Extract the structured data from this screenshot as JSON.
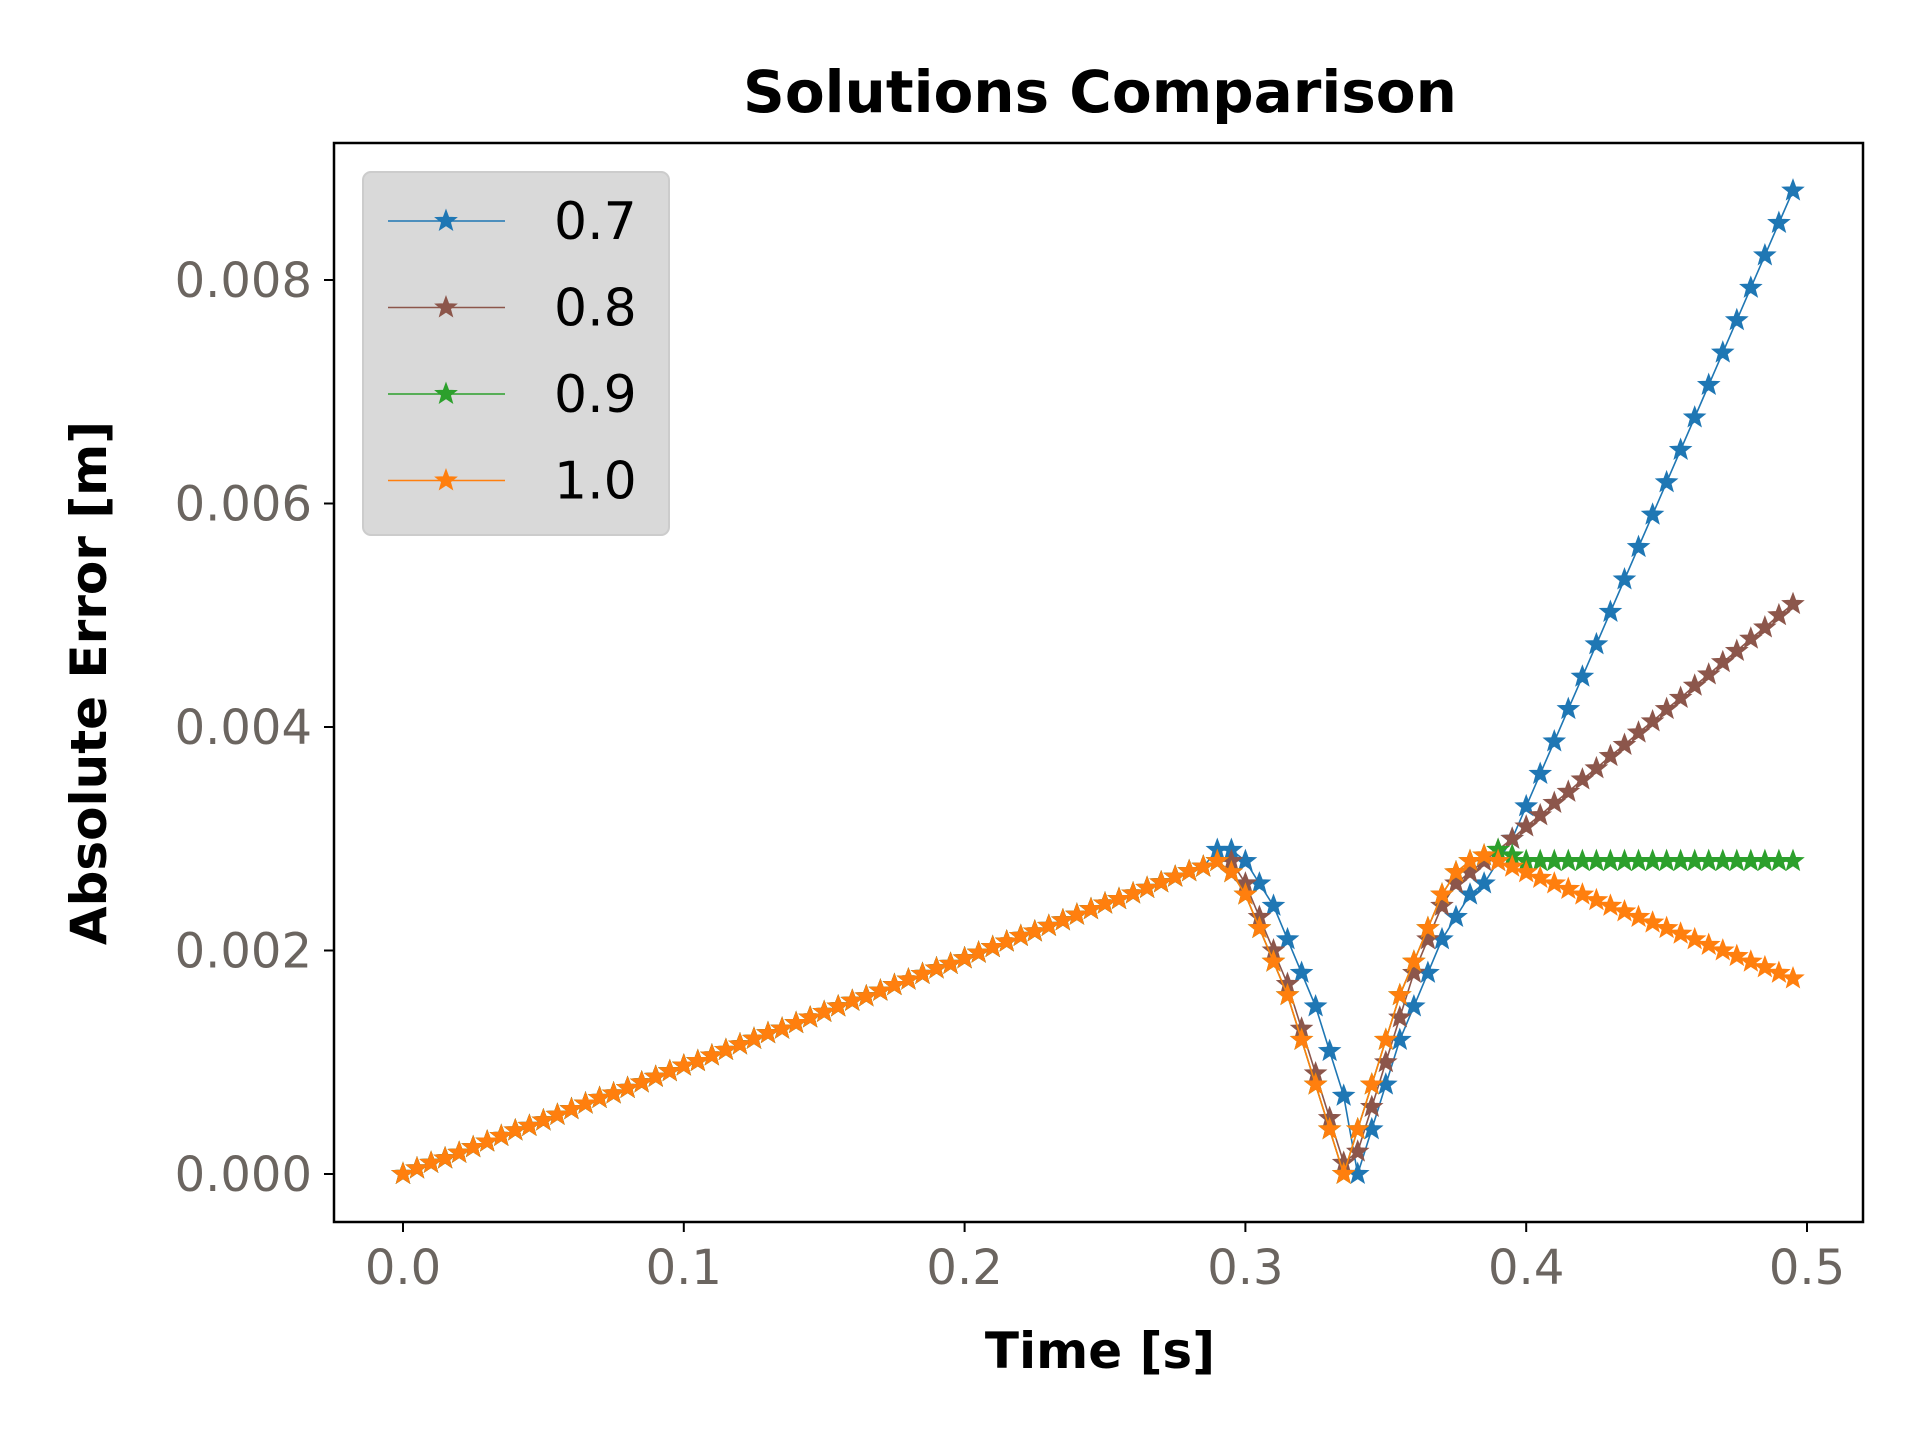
{
  "chart_data": {
    "type": "line",
    "title": "Solutions Comparison",
    "xlabel": "Time [s]",
    "ylabel": "Absolute Error [m]",
    "xlim": [
      -0.025,
      0.52
    ],
    "ylim": [
      -0.00045,
      0.0092
    ],
    "xticks": [
      "0.0",
      "0.1",
      "0.2",
      "0.3",
      "0.4",
      "0.5"
    ],
    "xtick_values": [
      0,
      0.1,
      0.2,
      0.3,
      0.4,
      0.5
    ],
    "yticks": [
      "0.000",
      "0.002",
      "0.004",
      "0.006",
      "0.008"
    ],
    "ytick_values": [
      0,
      0.002,
      0.004,
      0.006,
      0.008
    ],
    "grid": false,
    "legend_position": "top-left",
    "marker": "star",
    "tick_label_color": "#6b6560",
    "x": [
      0,
      0.005,
      0.01,
      0.015,
      0.02,
      0.025,
      0.03,
      0.035,
      0.04,
      0.045,
      0.05,
      0.055,
      0.06,
      0.065,
      0.07,
      0.075,
      0.08,
      0.085,
      0.09,
      0.095,
      0.1,
      0.105,
      0.11,
      0.115,
      0.12,
      0.125,
      0.13,
      0.135,
      0.14,
      0.145,
      0.15,
      0.155,
      0.16,
      0.165,
      0.17,
      0.175,
      0.18,
      0.185,
      0.19,
      0.195,
      0.2,
      0.205,
      0.21,
      0.215,
      0.22,
      0.225,
      0.23,
      0.235,
      0.24,
      0.245,
      0.25,
      0.255,
      0.26,
      0.265,
      0.27,
      0.275,
      0.28,
      0.285,
      0.29,
      0.295,
      0.3,
      0.305,
      0.31,
      0.315,
      0.32,
      0.325,
      0.33,
      0.335,
      0.34,
      0.345,
      0.35,
      0.355,
      0.36,
      0.365,
      0.37,
      0.375,
      0.38,
      0.385,
      0.39,
      0.395,
      0.4,
      0.405,
      0.41,
      0.415,
      0.42,
      0.425,
      0.43,
      0.435,
      0.44,
      0.445,
      0.45,
      0.455,
      0.46,
      0.465,
      0.47,
      0.475,
      0.48,
      0.485,
      0.49,
      0.495
    ],
    "series": [
      {
        "name": "0.7",
        "color": "#1f77b4",
        "y": [
          0,
          5e-05,
          0.0001,
          0.00014,
          0.00019,
          0.00024,
          0.00029,
          0.00034,
          0.00039,
          0.00043,
          0.00048,
          0.00053,
          0.00058,
          0.00063,
          0.00068,
          0.00072,
          0.00077,
          0.00082,
          0.00087,
          0.00092,
          0.00097,
          0.00101,
          0.00106,
          0.00111,
          0.00116,
          0.00121,
          0.00126,
          0.0013,
          0.00135,
          0.0014,
          0.00145,
          0.0015,
          0.00155,
          0.00159,
          0.00164,
          0.00169,
          0.00174,
          0.00179,
          0.00184,
          0.00188,
          0.00193,
          0.00198,
          0.00203,
          0.00208,
          0.00213,
          0.00217,
          0.00222,
          0.00227,
          0.00232,
          0.00237,
          0.00242,
          0.00246,
          0.00251,
          0.00256,
          0.00261,
          0.00266,
          0.00271,
          0.00275,
          0.0029,
          0.0029,
          0.0028,
          0.0026,
          0.0024,
          0.0021,
          0.0018,
          0.0015,
          0.0011,
          0.0007,
          0.0,
          0.0004,
          0.0008,
          0.0012,
          0.0015,
          0.0018,
          0.0021,
          0.0023,
          0.0025,
          0.0026,
          0.0028,
          0.003,
          0.00329,
          0.00358,
          0.00387,
          0.00416,
          0.00445,
          0.00474,
          0.00503,
          0.00532,
          0.00561,
          0.0059,
          0.00619,
          0.00648,
          0.00677,
          0.00706,
          0.00735,
          0.00764,
          0.00793,
          0.00822,
          0.00851,
          0.0088
        ]
      },
      {
        "name": "0.8",
        "color": "#8c564b",
        "y": [
          0,
          5e-05,
          0.0001,
          0.00014,
          0.00019,
          0.00024,
          0.00029,
          0.00034,
          0.00039,
          0.00043,
          0.00048,
          0.00053,
          0.00058,
          0.00063,
          0.00068,
          0.00072,
          0.00077,
          0.00082,
          0.00087,
          0.00092,
          0.00097,
          0.00101,
          0.00106,
          0.00111,
          0.00116,
          0.00121,
          0.00126,
          0.0013,
          0.00135,
          0.0014,
          0.00145,
          0.0015,
          0.00155,
          0.00159,
          0.00164,
          0.00169,
          0.00174,
          0.00179,
          0.00184,
          0.00188,
          0.00193,
          0.00198,
          0.00203,
          0.00208,
          0.00213,
          0.00217,
          0.00222,
          0.00227,
          0.00232,
          0.00237,
          0.00242,
          0.00246,
          0.00251,
          0.00256,
          0.00261,
          0.00266,
          0.00271,
          0.00275,
          0.0028,
          0.0028,
          0.0026,
          0.0023,
          0.002,
          0.0017,
          0.0013,
          0.0009,
          0.0005,
          0.0001,
          0.0002,
          0.0006,
          0.001,
          0.0014,
          0.0018,
          0.0021,
          0.0024,
          0.0026,
          0.0027,
          0.0028,
          0.0029,
          0.003,
          0.00311,
          0.00321,
          0.00332,
          0.00342,
          0.00353,
          0.00363,
          0.00374,
          0.00384,
          0.00395,
          0.00405,
          0.00416,
          0.00426,
          0.00437,
          0.00447,
          0.00458,
          0.00468,
          0.00479,
          0.00489,
          0.005,
          0.0051
        ]
      },
      {
        "name": "0.9",
        "color": "#2ca02c",
        "y": [
          0,
          5e-05,
          0.0001,
          0.00014,
          0.00019,
          0.00024,
          0.00029,
          0.00034,
          0.00039,
          0.00043,
          0.00048,
          0.00053,
          0.00058,
          0.00063,
          0.00068,
          0.00072,
          0.00077,
          0.00082,
          0.00087,
          0.00092,
          0.00097,
          0.00101,
          0.00106,
          0.00111,
          0.00116,
          0.00121,
          0.00126,
          0.0013,
          0.00135,
          0.0014,
          0.00145,
          0.0015,
          0.00155,
          0.00159,
          0.00164,
          0.00169,
          0.00174,
          0.00179,
          0.00184,
          0.00188,
          0.00193,
          0.00198,
          0.00203,
          0.00208,
          0.00213,
          0.00217,
          0.00222,
          0.00227,
          0.00232,
          0.00237,
          0.00242,
          0.00246,
          0.00251,
          0.00256,
          0.00261,
          0.00266,
          0.00271,
          0.00275,
          0.0028,
          0.0027,
          0.0025,
          0.0022,
          0.0019,
          0.0016,
          0.0012,
          0.0008,
          0.0004,
          0.0,
          0.0004,
          0.0008,
          0.0012,
          0.0016,
          0.0019,
          0.0022,
          0.0025,
          0.0027,
          0.0028,
          0.00285,
          0.0029,
          0.00285,
          0.0028,
          0.0028,
          0.0028,
          0.0028,
          0.0028,
          0.0028,
          0.0028,
          0.0028,
          0.0028,
          0.0028,
          0.0028,
          0.0028,
          0.0028,
          0.0028,
          0.0028,
          0.0028,
          0.0028,
          0.0028,
          0.0028,
          0.0028
        ]
      },
      {
        "name": "1.0",
        "color": "#ff7f0e",
        "y": [
          0,
          5e-05,
          0.0001,
          0.00014,
          0.00019,
          0.00024,
          0.00029,
          0.00034,
          0.00039,
          0.00043,
          0.00048,
          0.00053,
          0.00058,
          0.00063,
          0.00068,
          0.00072,
          0.00077,
          0.00082,
          0.00087,
          0.00092,
          0.00097,
          0.00101,
          0.00106,
          0.00111,
          0.00116,
          0.00121,
          0.00126,
          0.0013,
          0.00135,
          0.0014,
          0.00145,
          0.0015,
          0.00155,
          0.00159,
          0.00164,
          0.00169,
          0.00174,
          0.00179,
          0.00184,
          0.00188,
          0.00193,
          0.00198,
          0.00203,
          0.00208,
          0.00213,
          0.00217,
          0.00222,
          0.00227,
          0.00232,
          0.00237,
          0.00242,
          0.00246,
          0.00251,
          0.00256,
          0.00261,
          0.00266,
          0.00271,
          0.00275,
          0.0028,
          0.0027,
          0.0025,
          0.0022,
          0.0019,
          0.0016,
          0.0012,
          0.0008,
          0.0004,
          0.0,
          0.0004,
          0.0008,
          0.0012,
          0.0016,
          0.0019,
          0.0022,
          0.0025,
          0.0027,
          0.0028,
          0.00285,
          0.0028,
          0.00275,
          0.0027,
          0.00265,
          0.0026,
          0.00255,
          0.0025,
          0.00245,
          0.0024,
          0.00235,
          0.0023,
          0.00225,
          0.0022,
          0.00215,
          0.0021,
          0.00205,
          0.002,
          0.00195,
          0.0019,
          0.00185,
          0.0018,
          0.00175
        ]
      }
    ]
  }
}
